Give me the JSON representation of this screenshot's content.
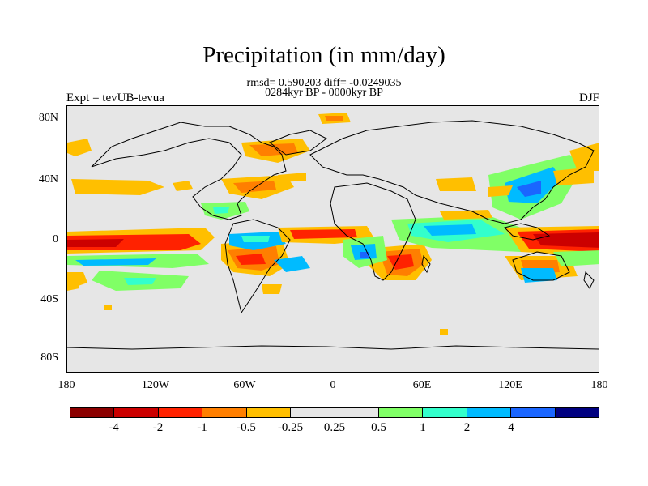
{
  "title": "Precipitation (in mm/day)",
  "stats_line": "rmsd= 0.590203 diff= -0.0249035",
  "period_line": "0284kyr BP - 0000kyr BP",
  "experiment": "Expt = tevUB-tevua",
  "season": "DJF",
  "y_ticks": [
    "80N",
    "40N",
    "0",
    "40S",
    "80S"
  ],
  "x_ticks": [
    "180",
    "120W",
    "60W",
    "0",
    "60E",
    "120E",
    "180"
  ],
  "colorbar": {
    "colors": [
      "#8b0000",
      "#cc0000",
      "#ff2200",
      "#ff7f00",
      "#ffbf00",
      "#e6e6e6",
      "#e6e6e6",
      "#80ff66",
      "#33ffcc",
      "#00bbff",
      "#1a66ff",
      "#000080"
    ],
    "labels": [
      "-4",
      "-2",
      "-1",
      "-0.5",
      "-0.25",
      "0.25",
      "0.5",
      "1",
      "2",
      "4"
    ]
  }
}
